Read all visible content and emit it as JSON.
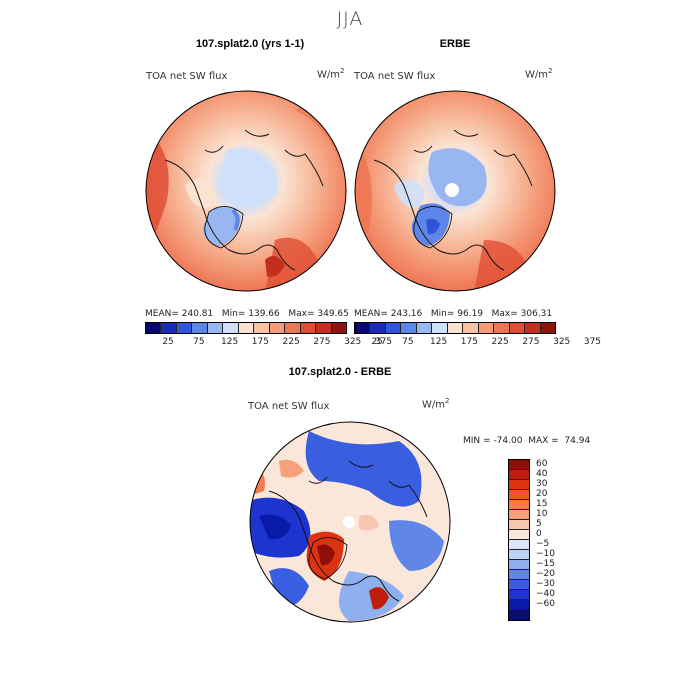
{
  "figure": {
    "season": "JJA"
  },
  "chart_data": [
    {
      "type": "heatmap",
      "title": "107.splat2.0 (yrs 1-1)",
      "variable": "TOA net SW flux",
      "units": "W/m2",
      "units_base": "W/m",
      "units_exp": "2",
      "projection": "north polar stereographic",
      "stats": {
        "mean_label": "MEAN=",
        "mean": "240.81",
        "min_label": "Min=",
        "min": "139.66",
        "max_label": "Max=",
        "max": "349.65"
      },
      "colorbar": {
        "levels": [
          "25",
          "75",
          "125",
          "175",
          "225",
          "275",
          "325",
          "375"
        ],
        "colors": [
          "#08066f",
          "#1a2bb8",
          "#2f55d8",
          "#5d86e8",
          "#98b6f2",
          "#cfe0fa",
          "#fbe3d3",
          "#f8c2a6",
          "#f49b78",
          "#ee7554",
          "#e04f35",
          "#c42e1e",
          "#8f1410"
        ]
      }
    },
    {
      "type": "heatmap",
      "title": "ERBE",
      "variable": "TOA net SW flux",
      "units": "W/m2",
      "units_base": "W/m",
      "units_exp": "2",
      "projection": "north polar stereographic",
      "stats": {
        "mean_label": "MEAN=",
        "mean": "243.16",
        "min_label": "Min=",
        "min": "96.19",
        "max_label": "Max=",
        "max": "306.31"
      },
      "colorbar": {
        "levels": [
          "25",
          "75",
          "125",
          "175",
          "225",
          "275",
          "325",
          "375"
        ],
        "colors": [
          "#08066f",
          "#1a2bb8",
          "#2f55d8",
          "#5d86e8",
          "#98b6f2",
          "#cfe0fa",
          "#fbe3d3",
          "#f8c2a6",
          "#f49b78",
          "#ee7554",
          "#e04f35",
          "#c42e1e",
          "#8f1410"
        ]
      }
    },
    {
      "type": "heatmap",
      "title": "107.splat2.0 - ERBE",
      "variable": "TOA net SW flux",
      "units": "W/m2",
      "units_base": "W/m",
      "units_exp": "2",
      "projection": "north polar stereographic",
      "stats": {
        "min_label": "MIN =",
        "min": "-74.00",
        "max_label": "MAX =",
        "max": "74.94"
      },
      "colorbar": {
        "levels": [
          "60",
          "40",
          "30",
          "20",
          "15",
          "10",
          "5",
          "0",
          "−5",
          "−10",
          "−15",
          "−20",
          "−30",
          "−40",
          "−60"
        ],
        "colors": [
          "#8f0f06",
          "#c01e0c",
          "#dc3413",
          "#ef5626",
          "#f57a4c",
          "#f7a07c",
          "#f8c6ae",
          "#fbe6da",
          "#dde6f8",
          "#bcd1f6",
          "#8fb0ef",
          "#6087e7",
          "#3a5ee0",
          "#1e34d0",
          "#0a1aa8",
          "#070d78"
        ]
      }
    }
  ]
}
